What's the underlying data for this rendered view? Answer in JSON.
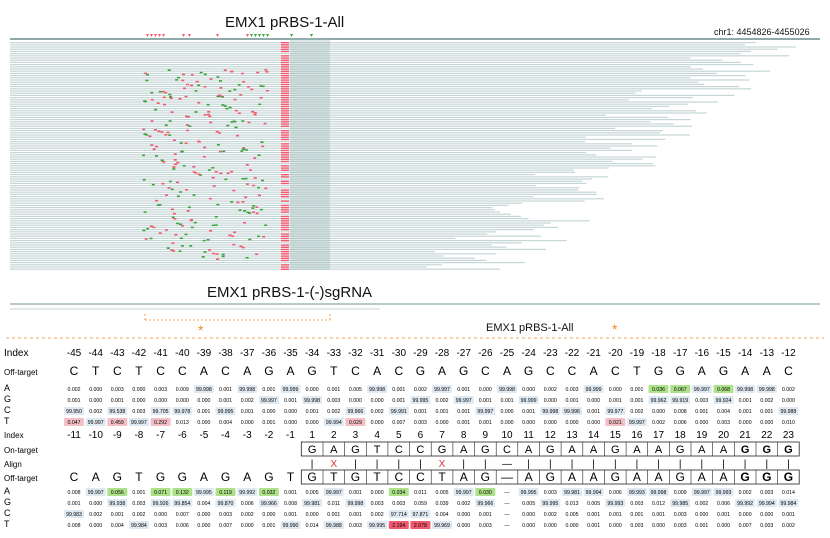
{
  "colors": {
    "read": "#c5d6d6",
    "insert": "#f2586f",
    "deletion": "#f2586f",
    "mismatch": "#3aa33a",
    "a_green": "#aee28a",
    "c_blue": "#cfe0f0",
    "t_pink": "#f4bfc6",
    "t_red": "#ef5a6f",
    "orange": "#f08a24"
  },
  "top": {
    "title": "EMX1 pRBS-1-All",
    "coord": "chr1: 4454826-4455026"
  },
  "middle": {
    "title": "EMX1 pRBS-1-(-)sgRNA"
  },
  "sep": {
    "label": "EMX1 pRBS-1-All",
    "star": "*"
  },
  "table1": {
    "labels": {
      "index": "Index",
      "offtarget": "Off-target",
      "A": "A",
      "G": "G",
      "C": "C",
      "T": "T"
    },
    "index": [
      "-45",
      "-44",
      "-43",
      "-42",
      "-41",
      "-40",
      "-39",
      "-38",
      "-37",
      "-36",
      "-35",
      "-34",
      "-33",
      "-32",
      "-31",
      "-30",
      "-29",
      "-28",
      "-27",
      "-26",
      "-25",
      "-24",
      "-23",
      "-22",
      "-21",
      "-20",
      "-19",
      "-18",
      "-17",
      "-16",
      "-15",
      "-14",
      "-13",
      "-12"
    ],
    "offtarget": [
      "C",
      "T",
      "C",
      "T",
      "C",
      "C",
      "A",
      "C",
      "A",
      "G",
      "A",
      "G",
      "T",
      "C",
      "A",
      "C",
      "G",
      "A",
      "G",
      "C",
      "A",
      "G",
      "C",
      "C",
      "A",
      "C",
      "T",
      "G",
      "G",
      "A",
      "G",
      "A",
      "A",
      "C"
    ],
    "A": [
      "0.002",
      "0.000",
      "0.003",
      "0.000",
      "0.003",
      "0.009",
      "99.998",
      "0.001",
      "99.998",
      "0.001",
      "99.999",
      "0.000",
      "0.001",
      "0.005",
      "99.998",
      "0.001",
      "0.002",
      "99.997",
      "0.001",
      "0.000",
      "99.998",
      "0.000",
      "0.002",
      "0.003",
      "99.999",
      "0.000",
      "0.001",
      "0.036",
      "0.067",
      "99.997",
      "0.068",
      "99.998",
      "99.998",
      "0.002"
    ],
    "G": [
      "0.001",
      "0.000",
      "0.001",
      "0.000",
      "0.000",
      "0.000",
      "0.000",
      "0.001",
      "0.002",
      "99.997",
      "0.001",
      "99.998",
      "0.003",
      "0.000",
      "0.000",
      "0.001",
      "99.995",
      "0.002",
      "99.997",
      "0.001",
      "0.001",
      "99.999",
      "0.000",
      "0.001",
      "0.000",
      "0.001",
      "0.001",
      "99.962",
      "99.919",
      "0.003",
      "99.924",
      "0.001",
      "0.002",
      "0.000"
    ],
    "C": [
      "99.950",
      "0.002",
      "99.538",
      "0.003",
      "99.705",
      "99.978",
      "0.001",
      "99.995",
      "0.001",
      "0.000",
      "0.000",
      "0.001",
      "0.002",
      "99.966",
      "0.002",
      "99.991",
      "0.001",
      "0.001",
      "0.001",
      "99.997",
      "0.000",
      "0.001",
      "99.998",
      "99.996",
      "0.001",
      "99.977",
      "0.002",
      "0.000",
      "0.008",
      "0.001",
      "0.004",
      "0.001",
      "0.001",
      "99.988"
    ],
    "T": [
      "0.047",
      "99.997",
      "0.459",
      "99.997",
      "0.292",
      "0.013",
      "0.000",
      "0.004",
      "0.000",
      "0.001",
      "0.000",
      "0.000",
      "99.994",
      "0.029",
      "0.000",
      "0.007",
      "0.003",
      "0.000",
      "0.001",
      "0.001",
      "0.000",
      "0.000",
      "0.000",
      "0.000",
      "0.000",
      "0.021",
      "99.997",
      "0.002",
      "0.006",
      "0.000",
      "0.003",
      "0.000",
      "0.000",
      "0.010"
    ]
  },
  "table2": {
    "labels": {
      "index": "Index",
      "ontarget": "On-target",
      "align": "Align",
      "offtarget": "Off-target",
      "A": "A",
      "G": "G",
      "C": "C",
      "T": "T"
    },
    "index": [
      "-11",
      "-10",
      "-9",
      "-8",
      "-7",
      "-6",
      "-5",
      "-4",
      "-3",
      "-2",
      "-1",
      "1",
      "2",
      "3",
      "4",
      "5",
      "6",
      "7",
      "8",
      "9",
      "10",
      "11",
      "12",
      "13",
      "14",
      "15",
      "16",
      "17",
      "18",
      "19",
      "20",
      "21",
      "22",
      "23"
    ],
    "ontarget": [
      "",
      "",
      "",
      "",
      "",
      "",
      "",
      "",
      "",
      "",
      "",
      "G",
      "A",
      "G",
      "T",
      "C",
      "C",
      "G",
      "A",
      "G",
      "C",
      "A",
      "G",
      "A",
      "A",
      "G",
      "A",
      "A",
      "G",
      "A",
      "A",
      "G",
      "G",
      "G"
    ],
    "align": [
      "",
      "",
      "",
      "",
      "",
      "",
      "",
      "",
      "",
      "",
      "",
      "|",
      "X",
      "|",
      "|",
      "|",
      "|",
      "X",
      "|",
      "|",
      "—",
      "|",
      "|",
      "|",
      "|",
      "|",
      "|",
      "|",
      "|",
      "|",
      "|",
      "|",
      "|",
      "|"
    ],
    "offtarget": [
      "C",
      "A",
      "G",
      "T",
      "G",
      "G",
      "A",
      "G",
      "A",
      "G",
      "T",
      "G",
      "T",
      "G",
      "T",
      "C",
      "C",
      "T",
      "A",
      "G",
      "—",
      "A",
      "G",
      "A",
      "A",
      "G",
      "A",
      "A",
      "G",
      "A",
      "A",
      "G",
      "G",
      "G"
    ],
    "A": [
      "0.008",
      "99.997",
      "0.056",
      "0.001",
      "0.071",
      "0.132",
      "99.995",
      "0.119",
      "99.992",
      "0.032",
      "0.001",
      "0.005",
      "99.997",
      "0.001",
      "0.000",
      "0.034",
      "0.011",
      "0.005",
      "99.997",
      "0.030",
      "—",
      "99.995",
      "0.003",
      "99.981",
      "99.994",
      "0.006",
      "99.993",
      "99.998",
      "0.009",
      "99.997",
      "99.993",
      "0.002",
      "0.003",
      "0.014"
    ],
    "G": [
      "0.001",
      "0.000",
      "99.938",
      "0.003",
      "99.926",
      "99.854",
      "0.004",
      "99.870",
      "0.006",
      "99.966",
      "0.008",
      "99.981",
      "0.011",
      "99.998",
      "0.003",
      "0.003",
      "0.059",
      "0.039",
      "0.002",
      "99.966",
      "—",
      "0.005",
      "99.995",
      "0.013",
      "0.005",
      "99.993",
      "0.003",
      "0.012",
      "99.985",
      "0.002",
      "0.006",
      "99.992",
      "99.994",
      "99.984"
    ],
    "C": [
      "99.983",
      "0.002",
      "0.001",
      "0.002",
      "0.000",
      "0.007",
      "0.000",
      "0.003",
      "0.002",
      "0.000",
      "0.001",
      "0.000",
      "0.001",
      "0.001",
      "0.002",
      "97.714",
      "97.871",
      "0.004",
      "0.000",
      "0.001",
      "—",
      "0.000",
      "0.002",
      "0.005",
      "0.001",
      "0.001",
      "0.001",
      "0.001",
      "0.003",
      "0.000",
      "0.001",
      "0.000",
      "0.000",
      "0.001"
    ],
    "T": [
      "0.008",
      "0.000",
      "0.004",
      "99.984",
      "0.003",
      "0.006",
      "0.000",
      "0.007",
      "0.000",
      "0.001",
      "99.990",
      "0.014",
      "99.988",
      "0.003",
      "99.995",
      "2.194",
      "2.078",
      "99.969",
      "0.000",
      "0.003",
      "—",
      "0.000",
      "0.000",
      "0.000",
      "0.001",
      "0.000",
      "0.003",
      "0.000",
      "0.003",
      "0.001",
      "0.000",
      "0.007",
      "0.003",
      "0.002"
    ]
  }
}
